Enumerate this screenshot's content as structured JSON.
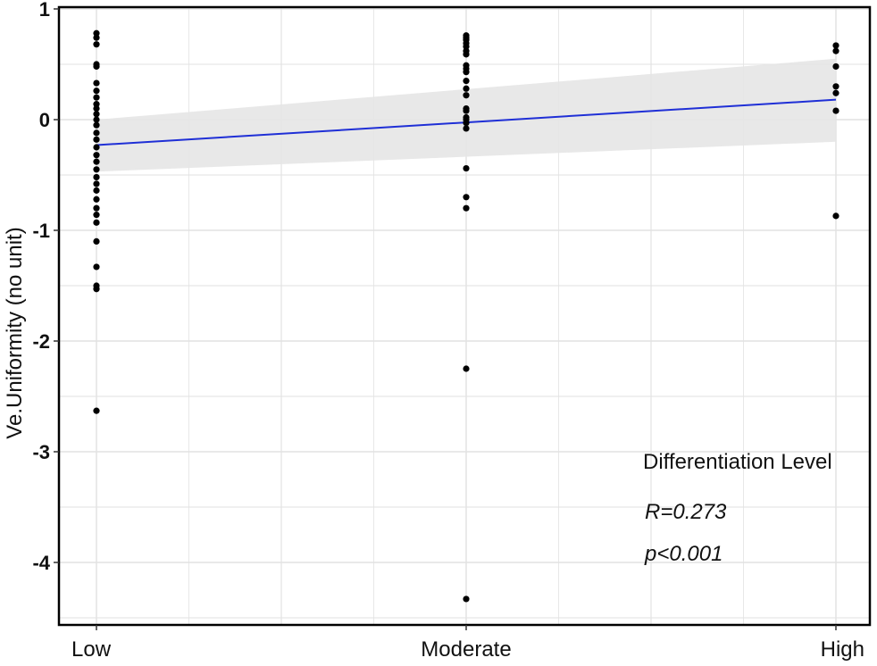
{
  "chart_data": {
    "type": "scatter",
    "title": "",
    "xlabel": "",
    "ylabel": "Ve.Uniformity (no unit)",
    "categories": [
      "Low",
      "Moderate",
      "High"
    ],
    "ylim": [
      -4.5,
      1.0
    ],
    "yticks": [
      1,
      0,
      -1,
      -2,
      -3,
      -4
    ],
    "grid": true,
    "points": {
      "Low": [
        0.78,
        0.74,
        0.68,
        0.5,
        0.48,
        0.33,
        0.26,
        0.2,
        0.14,
        0.1,
        0.05,
        0.0,
        -0.05,
        -0.12,
        -0.18,
        -0.25,
        -0.32,
        -0.38,
        -0.45,
        -0.52,
        -0.58,
        -0.64,
        -0.72,
        -0.8,
        -0.86,
        -0.93,
        -1.1,
        -1.33,
        -1.5,
        -1.53,
        -2.63
      ],
      "Moderate": [
        0.76,
        0.74,
        0.72,
        0.69,
        0.66,
        0.62,
        0.59,
        0.49,
        0.46,
        0.43,
        0.35,
        0.28,
        0.22,
        0.1,
        0.08,
        0.02,
        0.0,
        -0.03,
        -0.08,
        -0.44,
        -0.7,
        -0.8,
        -2.25,
        -4.33
      ],
      "High": [
        0.67,
        0.62,
        0.48,
        0.3,
        0.24,
        0.08,
        -0.87
      ]
    },
    "regression": {
      "line": [
        -0.23,
        0.18
      ],
      "ci_lower": [
        -0.47,
        -0.2
      ],
      "ci_upper": [
        0.0,
        0.55
      ]
    },
    "colors": {
      "points": "#000000",
      "regression_line": "#1f2fd6",
      "confidence_band": "#e6e6e6",
      "grid": "#e2e2e2"
    },
    "annotations": {
      "legend_title": "Differentiation Level",
      "r_text": "R=0.273",
      "p_text": "p<0.001"
    }
  }
}
